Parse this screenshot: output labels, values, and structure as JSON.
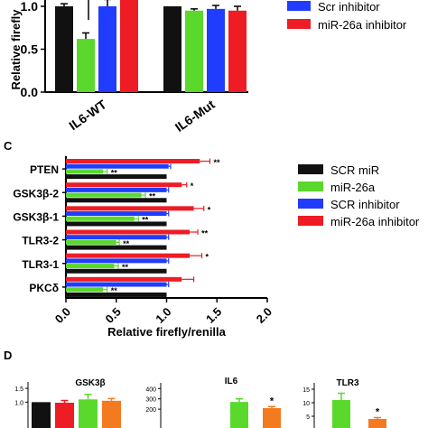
{
  "panel_labels": {
    "c": "C",
    "d": "D"
  },
  "stars": {
    "single": "*",
    "double": "**"
  },
  "colors": {
    "black": "#111111",
    "green": "#5ad82c",
    "blue": "#1f3cff",
    "red": "#ee1c24",
    "orange": "#f47a20"
  },
  "chart_data": [
    {
      "id": "panel-top",
      "type": "bar",
      "orientation": "vertical",
      "ylabel": "Relative firefly",
      "ylim": [
        0,
        1.0
      ],
      "yticks": [
        "0.0",
        "0.5",
        "1.0"
      ],
      "categories": [
        "IL6-WT",
        "IL6-Mut"
      ],
      "series": [
        {
          "name": "",
          "color": "#111111",
          "values": [
            1.0,
            1.0
          ],
          "errors": [
            0.03,
            0.0
          ]
        },
        {
          "name": "",
          "color": "#5ad82c",
          "values": [
            0.62,
            0.95
          ],
          "errors": [
            0.07,
            0.02
          ]
        },
        {
          "name": "Scr inhibitor",
          "color": "#1f3cff",
          "values": [
            1.0,
            0.97
          ],
          "errors": [
            0.08,
            0.04
          ]
        },
        {
          "name": "miR-26a inhibitor",
          "color": "#ee1c24",
          "values": [
            1.1,
            0.95
          ],
          "errors": [
            0.0,
            0.05
          ]
        }
      ]
    },
    {
      "id": "panel-c",
      "type": "bar",
      "orientation": "horizontal",
      "xlabel": "Relative firefly/renilla",
      "xlim": [
        0,
        2.0
      ],
      "xticks": [
        "0.0",
        "0.5",
        "1.0",
        "1.5",
        "2.0"
      ],
      "categories": [
        "PTEN",
        "GSK3β-2",
        "GSK3β-1",
        "TLR3-2",
        "TLR3-1",
        "PKCδ"
      ],
      "series": [
        {
          "name": "SCR miR",
          "color": "#111111",
          "values": [
            1.0,
            1.0,
            1.0,
            1.0,
            1.0,
            1.0
          ],
          "errors": [
            0,
            0,
            0,
            0,
            0,
            0
          ]
        },
        {
          "name": "miR-26a",
          "color": "#5ad82c",
          "values": [
            0.37,
            0.75,
            0.68,
            0.5,
            0.48,
            0.37
          ],
          "errors": [
            0.04,
            0.04,
            0.04,
            0.03,
            0.04,
            0.04
          ]
        },
        {
          "name": "SCR inhibitor",
          "color": "#1f3cff",
          "values": [
            1.02,
            1.0,
            1.0,
            1.0,
            1.0,
            1.0
          ],
          "errors": [
            0.02,
            0.02,
            0.02,
            0.02,
            0.02,
            0.02
          ]
        },
        {
          "name": "miR-26a inhibitor",
          "color": "#ee1c24",
          "values": [
            1.33,
            1.15,
            1.27,
            1.23,
            1.23,
            1.15
          ],
          "errors": [
            0.1,
            0.05,
            0.1,
            0.08,
            0.12,
            0.12
          ]
        }
      ],
      "annotations": [
        {
          "category": "PTEN",
          "series": "miR-26a",
          "text": "**"
        },
        {
          "category": "PTEN",
          "series": "miR-26a inhibitor",
          "text": "**"
        },
        {
          "category": "GSK3β-2",
          "series": "miR-26a",
          "text": "**"
        },
        {
          "category": "GSK3β-2",
          "series": "miR-26a inhibitor",
          "text": "*"
        },
        {
          "category": "GSK3β-1",
          "series": "miR-26a",
          "text": "**"
        },
        {
          "category": "GSK3β-1",
          "series": "miR-26a inhibitor",
          "text": "*"
        },
        {
          "category": "TLR3-2",
          "series": "miR-26a",
          "text": "**"
        },
        {
          "category": "TLR3-2",
          "series": "miR-26a inhibitor",
          "text": "**"
        },
        {
          "category": "TLR3-1",
          "series": "miR-26a",
          "text": "**"
        },
        {
          "category": "TLR3-1",
          "series": "miR-26a inhibitor",
          "text": "*"
        },
        {
          "category": "PKCδ",
          "series": "miR-26a",
          "text": "**"
        }
      ]
    },
    {
      "id": "panel-d-gsk3b",
      "type": "bar",
      "title": "GSK3β",
      "yticks": [
        "1.5",
        "1.0"
      ],
      "ylim": [
        0,
        1.6
      ],
      "values": [
        1.0,
        0.98,
        1.1,
        1.05
      ],
      "errors": [
        0.0,
        0.08,
        0.18,
        0.08
      ],
      "colors": [
        "#111111",
        "#ee1c24",
        "#5ad82c",
        "#f47a20"
      ]
    },
    {
      "id": "panel-d-il6",
      "type": "bar",
      "title": "IL6",
      "yticks": [
        "400",
        "300",
        "200"
      ],
      "ylim": [
        0,
        420
      ],
      "values": [
        270,
        210
      ],
      "errors": [
        30,
        15
      ],
      "colors": [
        "#5ad82c",
        "#f47a20"
      ],
      "annotations": [
        "*"
      ]
    },
    {
      "id": "panel-d-tlr3",
      "type": "bar",
      "title": "TLR3",
      "yticks": [
        "15",
        "10",
        "5"
      ],
      "ylim": [
        0,
        16
      ],
      "values": [
        11,
        4
      ],
      "errors": [
        2.5,
        0.5
      ],
      "colors": [
        "#5ad82c",
        "#f47a20"
      ],
      "annotations": [
        "*"
      ]
    }
  ]
}
